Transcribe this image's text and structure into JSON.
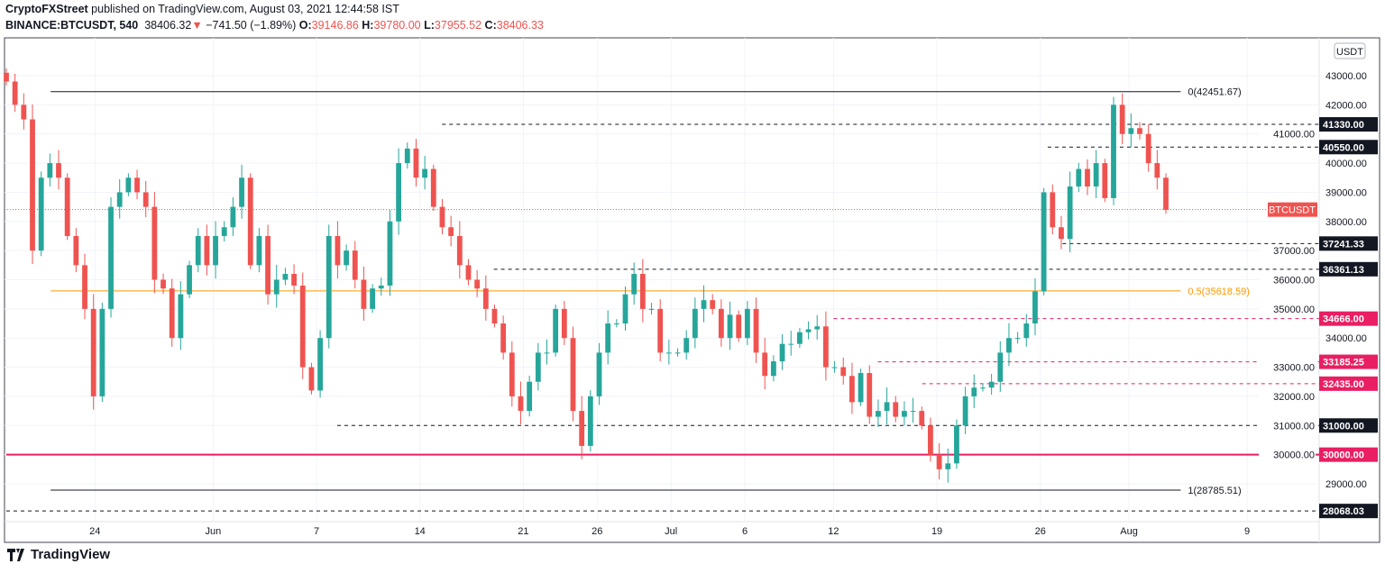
{
  "header": {
    "author": "CryptoFXStreet",
    "published": "published on TradingView.com, August 03, 2021 12:44:58 IST",
    "symbol": "BINANCE:BTCUSDT, 540",
    "last": "38406.32",
    "change": "−741.50 (−1.89%)",
    "o_label": "O:",
    "o": "39146.86",
    "h_label": "H:",
    "h": "39780.00",
    "l_label": "L:",
    "l": "37955.52",
    "c_label": "C:",
    "c": "38406.33"
  },
  "footer": {
    "brand": "TradingView"
  },
  "colors": {
    "up": "#26a69a",
    "down": "#ef5350",
    "pink": "#e91e63",
    "orange": "#ff9800",
    "black": "#131722"
  },
  "chart_data": {
    "type": "candlestick",
    "currency": "USDT",
    "symbol_label": "BTCUSDT",
    "current_price": 38406.33,
    "ylim": [
      27800,
      44200
    ],
    "y_ticks": [
      "43000.00",
      "42000.00",
      "41000.00",
      "40000.00",
      "39000.00",
      "38000.00",
      "37000.00",
      "36000.00",
      "35000.00",
      "34000.00",
      "33000.00",
      "32000.00",
      "31000.00",
      "30000.00",
      "29000.00"
    ],
    "y_tick_values": [
      43000,
      42000,
      41000,
      40000,
      39000,
      38000,
      37000,
      36000,
      35000,
      34000,
      33000,
      32000,
      31000,
      30000,
      29000
    ],
    "x_ticks": [
      "24",
      "Jun",
      "7",
      "14",
      "21",
      "26",
      "Jul",
      "6",
      "12",
      "19",
      "26",
      "Aug",
      "9"
    ],
    "x_tick_days": [
      6,
      14,
      21,
      28,
      35,
      40,
      45,
      50,
      56,
      63,
      70,
      76,
      84
    ],
    "start_day": 0,
    "end_day": 78.5,
    "closes": [
      42800,
      42000,
      41500,
      37000,
      39500,
      40000,
      39500,
      37500,
      36500,
      35000,
      32000,
      35000,
      38500,
      39000,
      39500,
      39000,
      38500,
      36000,
      35700,
      34000,
      35500,
      36500,
      37500,
      36500,
      37500,
      37800,
      38500,
      39500,
      36500,
      37500,
      35500,
      36000,
      36200,
      35800,
      33000,
      32200,
      34000,
      37500,
      36500,
      37000,
      36000,
      35000,
      35700,
      35800,
      38000,
      40000,
      40500,
      39500,
      39800,
      38500,
      37800,
      37500,
      36500,
      36000,
      35700,
      35000,
      34500,
      33500,
      32000,
      31500,
      32500,
      33500,
      33500,
      35000,
      34000,
      31500,
      30300,
      32000,
      33500,
      34500,
      34500,
      35500,
      36200,
      35000,
      35000,
      33500,
      33500,
      33500,
      34000,
      35000,
      35300,
      35000,
      34000,
      34800,
      34000,
      35000,
      33500,
      32700,
      33200,
      33800,
      33800,
      34200,
      34300,
      34400,
      33000,
      33000,
      32700,
      31800,
      32800,
      31300,
      31500,
      31800,
      31300,
      31500,
      31500,
      31000,
      30000,
      29500,
      29700,
      31000,
      32000,
      32300,
      32300,
      32500,
      33500,
      34000,
      34000,
      34500,
      35600,
      39000,
      37800,
      37400,
      39200,
      39800,
      39200,
      40000,
      38800,
      42000,
      41000,
      41200,
      41000,
      40000,
      39500,
      38400
    ],
    "levels": [
      {
        "label": "41330.00",
        "value": 41330,
        "style": "dashed",
        "color": "black",
        "from_day": 29.5
      },
      {
        "label": "40550.00",
        "value": 40550,
        "style": "dashed",
        "color": "black",
        "from_day": 70.5
      },
      {
        "label": "37241.33",
        "value": 37241.33,
        "style": "dashed",
        "color": "black",
        "from_day": 71.5
      },
      {
        "label": "36361.13",
        "value": 36361.13,
        "style": "dashed",
        "color": "black",
        "from_day": 33
      },
      {
        "label": "34666.00",
        "value": 34666,
        "style": "dashed",
        "color": "pink",
        "from_day": 56
      },
      {
        "label": "33185.25",
        "value": 33185.25,
        "style": "dashed",
        "color": "pink",
        "from_day": 59
      },
      {
        "label": "32435.00",
        "value": 32435,
        "style": "dashed",
        "color": "pink",
        "from_day": 62
      },
      {
        "label": "31000.00",
        "value": 31000,
        "style": "dashed",
        "color": "black",
        "from_day": 22.4
      },
      {
        "label": "30000.00",
        "value": 30000,
        "style": "solid",
        "color": "pink",
        "from_day": 0
      },
      {
        "label": "28068.03",
        "value": 28068.03,
        "style": "dashed",
        "color": "black",
        "from_day": 0
      }
    ],
    "fib": [
      {
        "label": "0(42451.67)",
        "value": 42451.67,
        "color": "black"
      },
      {
        "label": "0.5(35618.59)",
        "value": 35618.59,
        "color": "orange"
      },
      {
        "label": "1(28785.51)",
        "value": 28785.51,
        "color": "black"
      }
    ]
  }
}
